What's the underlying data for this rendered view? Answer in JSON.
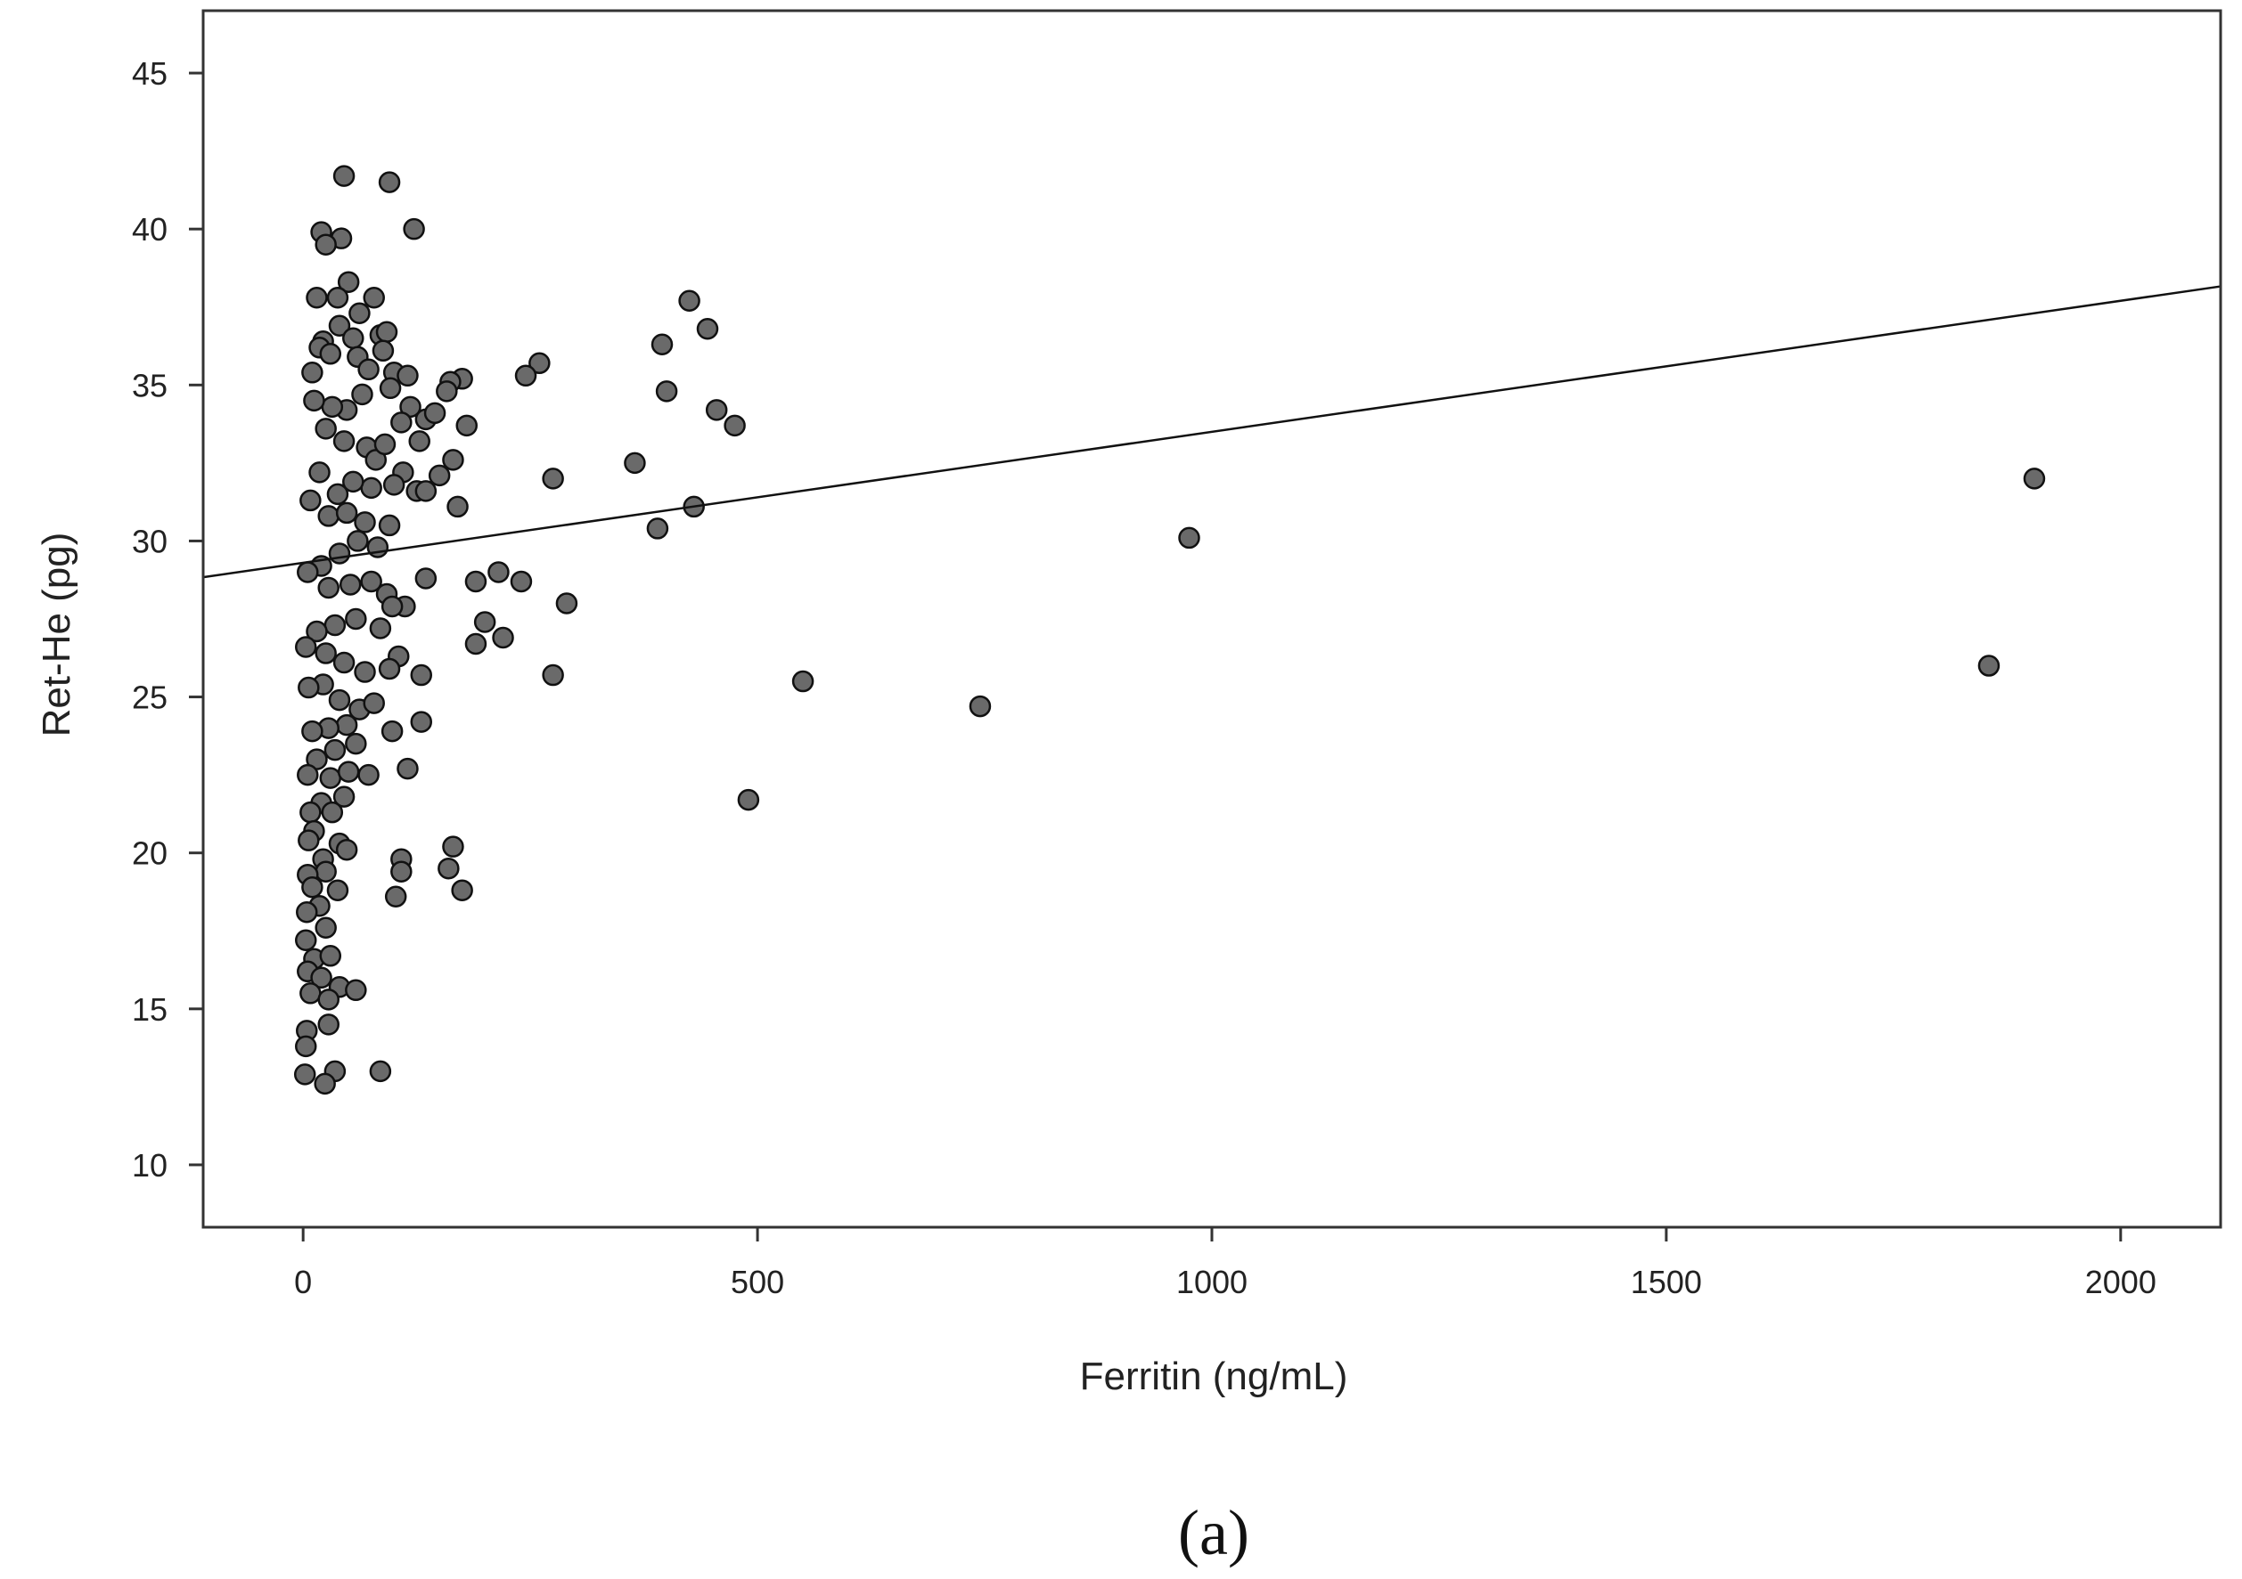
{
  "panel_label": "(a)",
  "colors": {
    "point_fill": "#6a6a6a",
    "point_stroke": "#111111",
    "line": "#111111",
    "frame": "#333333"
  },
  "chart_data": {
    "type": "scatter",
    "title": "",
    "xlabel": "Ferritin (ng/mL)",
    "ylabel": "Ret-He (pg)",
    "xlim": [
      -110,
      2110
    ],
    "ylim": [
      8,
      47
    ],
    "xticks": [
      0,
      500,
      1000,
      1500,
      2000
    ],
    "yticks": [
      10,
      15,
      20,
      25,
      30,
      35,
      40,
      45
    ],
    "grid": false,
    "legend": "none",
    "fit_line": {
      "intercept": 29.3,
      "slope": 0.0042
    },
    "points": [
      [
        45,
        41.7
      ],
      [
        95,
        41.5
      ],
      [
        122,
        40
      ],
      [
        20,
        39.9
      ],
      [
        42,
        39.7
      ],
      [
        25,
        39.5
      ],
      [
        50,
        38.3
      ],
      [
        15,
        37.8
      ],
      [
        38,
        37.8
      ],
      [
        78,
        37.8
      ],
      [
        62,
        37.3
      ],
      [
        85,
        36.6
      ],
      [
        92,
        36.7
      ],
      [
        40,
        36.9
      ],
      [
        22,
        36.4
      ],
      [
        55,
        36.5
      ],
      [
        88,
        36.1
      ],
      [
        18,
        36.2
      ],
      [
        30,
        36.0
      ],
      [
        10,
        35.4
      ],
      [
        60,
        35.9
      ],
      [
        72,
        35.5
      ],
      [
        100,
        35.4
      ],
      [
        115,
        35.3
      ],
      [
        175,
        35.2
      ],
      [
        162,
        35.1
      ],
      [
        158,
        34.8
      ],
      [
        135,
        33.9
      ],
      [
        145,
        34.1
      ],
      [
        180,
        33.7
      ],
      [
        118,
        34.3
      ],
      [
        108,
        33.8
      ],
      [
        96,
        34.9
      ],
      [
        65,
        34.7
      ],
      [
        48,
        34.2
      ],
      [
        32,
        34.3
      ],
      [
        12,
        34.5
      ],
      [
        25,
        33.6
      ],
      [
        45,
        33.2
      ],
      [
        70,
        33.0
      ],
      [
        80,
        32.6
      ],
      [
        90,
        33.1
      ],
      [
        110,
        32.2
      ],
      [
        128,
        33.2
      ],
      [
        165,
        32.6
      ],
      [
        150,
        32.1
      ],
      [
        125,
        31.6
      ],
      [
        135,
        31.6
      ],
      [
        170,
        31.1
      ],
      [
        100,
        31.8
      ],
      [
        75,
        31.7
      ],
      [
        55,
        31.9
      ],
      [
        38,
        31.5
      ],
      [
        18,
        32.2
      ],
      [
        8,
        31.3
      ],
      [
        28,
        30.8
      ],
      [
        48,
        30.9
      ],
      [
        68,
        30.6
      ],
      [
        95,
        30.5
      ],
      [
        82,
        29.8
      ],
      [
        60,
        30.0
      ],
      [
        40,
        29.6
      ],
      [
        20,
        29.2
      ],
      [
        5,
        29.0
      ],
      [
        28,
        28.5
      ],
      [
        52,
        28.6
      ],
      [
        75,
        28.7
      ],
      [
        92,
        28.3
      ],
      [
        112,
        27.9
      ],
      [
        98,
        27.9
      ],
      [
        135,
        28.8
      ],
      [
        190,
        28.7
      ],
      [
        215,
        29.0
      ],
      [
        240,
        28.7
      ],
      [
        290,
        28.0
      ],
      [
        200,
        27.4
      ],
      [
        220,
        26.9
      ],
      [
        190,
        26.7
      ],
      [
        58,
        27.5
      ],
      [
        35,
        27.3
      ],
      [
        15,
        27.1
      ],
      [
        3,
        26.6
      ],
      [
        25,
        26.4
      ],
      [
        45,
        26.1
      ],
      [
        68,
        25.8
      ],
      [
        85,
        27.2
      ],
      [
        105,
        26.3
      ],
      [
        95,
        25.9
      ],
      [
        130,
        25.7
      ],
      [
        275,
        25.7
      ],
      [
        22,
        25.4
      ],
      [
        6,
        25.3
      ],
      [
        40,
        24.9
      ],
      [
        62,
        24.6
      ],
      [
        78,
        24.8
      ],
      [
        48,
        24.1
      ],
      [
        28,
        24.0
      ],
      [
        10,
        23.9
      ],
      [
        98,
        23.9
      ],
      [
        130,
        24.2
      ],
      [
        58,
        23.5
      ],
      [
        35,
        23.3
      ],
      [
        15,
        23.0
      ],
      [
        5,
        22.5
      ],
      [
        30,
        22.4
      ],
      [
        50,
        22.6
      ],
      [
        72,
        22.5
      ],
      [
        115,
        22.7
      ],
      [
        20,
        21.6
      ],
      [
        45,
        21.8
      ],
      [
        8,
        21.3
      ],
      [
        32,
        21.3
      ],
      [
        12,
        20.7
      ],
      [
        40,
        20.3
      ],
      [
        48,
        20.1
      ],
      [
        6,
        20.4
      ],
      [
        22,
        19.8
      ],
      [
        108,
        19.8
      ],
      [
        165,
        20.2
      ],
      [
        108,
        19.4
      ],
      [
        160,
        19.5
      ],
      [
        25,
        19.4
      ],
      [
        5,
        19.3
      ],
      [
        10,
        18.9
      ],
      [
        38,
        18.8
      ],
      [
        102,
        18.6
      ],
      [
        175,
        18.8
      ],
      [
        18,
        18.3
      ],
      [
        4,
        18.1
      ],
      [
        25,
        17.6
      ],
      [
        3,
        17.2
      ],
      [
        12,
        16.6
      ],
      [
        30,
        16.7
      ],
      [
        5,
        16.2
      ],
      [
        20,
        16.0
      ],
      [
        40,
        15.7
      ],
      [
        58,
        15.6
      ],
      [
        8,
        15.5
      ],
      [
        28,
        15.3
      ],
      [
        28,
        14.5
      ],
      [
        4,
        14.3
      ],
      [
        3,
        13.8
      ],
      [
        2,
        12.9
      ],
      [
        35,
        13.0
      ],
      [
        85,
        13.0
      ],
      [
        24,
        12.6
      ],
      [
        260,
        35.7
      ],
      [
        245,
        35.3
      ],
      [
        275,
        32.0
      ],
      [
        365,
        32.5
      ],
      [
        425,
        37.7
      ],
      [
        445,
        36.8
      ],
      [
        395,
        36.3
      ],
      [
        400,
        34.8
      ],
      [
        455,
        34.2
      ],
      [
        475,
        33.7
      ],
      [
        430,
        31.1
      ],
      [
        390,
        30.4
      ],
      [
        550,
        25.5
      ],
      [
        490,
        21.7
      ],
      [
        745,
        24.7
      ],
      [
        975,
        30.1
      ],
      [
        1855,
        26.0
      ],
      [
        1905,
        32.0
      ]
    ]
  }
}
